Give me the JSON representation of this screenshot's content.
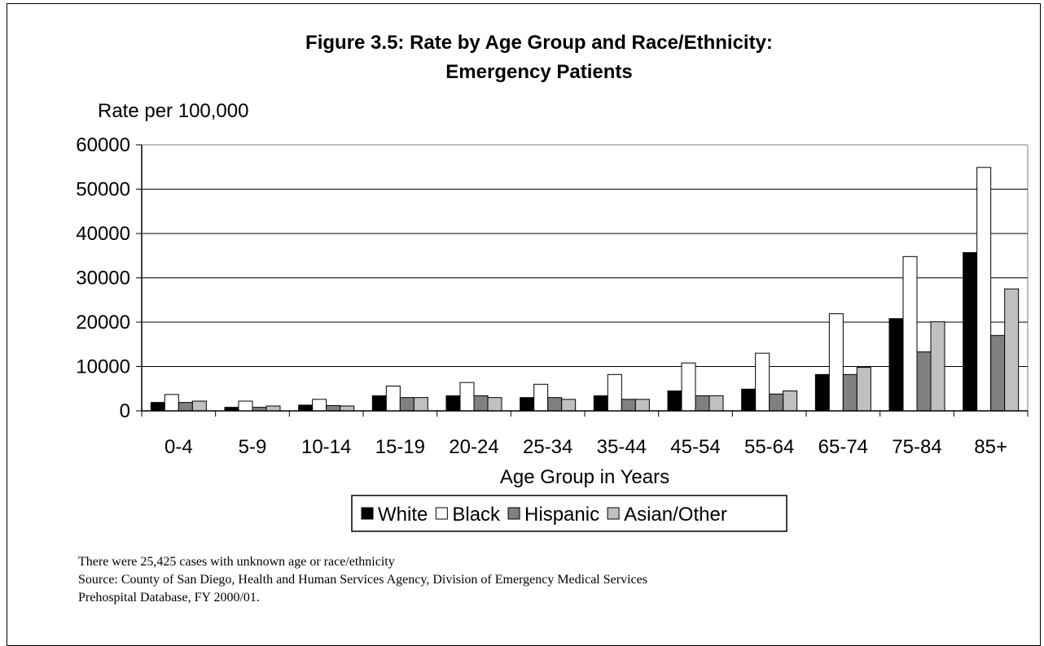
{
  "chart_data": {
    "type": "bar",
    "title_line1": "Figure 3.5: Rate by Age Group and Race/Ethnicity:",
    "title_line2": "Emergency Patients",
    "ylabel": "Rate per 100,000",
    "xlabel": "Age Group in Years",
    "ylim": [
      0,
      60000
    ],
    "yticks": [
      "0",
      "10000",
      "20000",
      "30000",
      "40000",
      "50000",
      "60000"
    ],
    "grid": true,
    "legend_position": "bottom",
    "categories": [
      "0-4",
      "5-9",
      "10-14",
      "15-19",
      "20-24",
      "25-34",
      "35-44",
      "45-54",
      "55-64",
      "65-74",
      "75-84",
      "85+"
    ],
    "series": [
      {
        "name": "White",
        "color": "#000000",
        "values": [
          1900,
          800,
          1300,
          3400,
          3400,
          3000,
          3400,
          4500,
          4900,
          8200,
          20800,
          35700
        ]
      },
      {
        "name": "Black",
        "color": "#ffffff",
        "values": [
          3700,
          2200,
          2600,
          5600,
          6400,
          6000,
          8200,
          10800,
          13000,
          21900,
          34800,
          54900
        ]
      },
      {
        "name": "Hispanic",
        "color": "#808080",
        "values": [
          1900,
          800,
          1200,
          3000,
          3400,
          3000,
          2600,
          3400,
          3800,
          8200,
          13300,
          17000
        ]
      },
      {
        "name": "Asian/Other",
        "color": "#c0c0c0",
        "values": [
          2200,
          1100,
          1100,
          3000,
          3000,
          2600,
          2600,
          3400,
          4500,
          9800,
          20100,
          27500
        ]
      }
    ]
  },
  "notes": {
    "line1": "There were 25,425 cases with unknown age or race/ethnicity",
    "line2": "Source: County of San Diego, Health and Human Services Agency, Division of Emergency Medical Services",
    "line3": "Prehospital Database, FY 2000/01."
  }
}
